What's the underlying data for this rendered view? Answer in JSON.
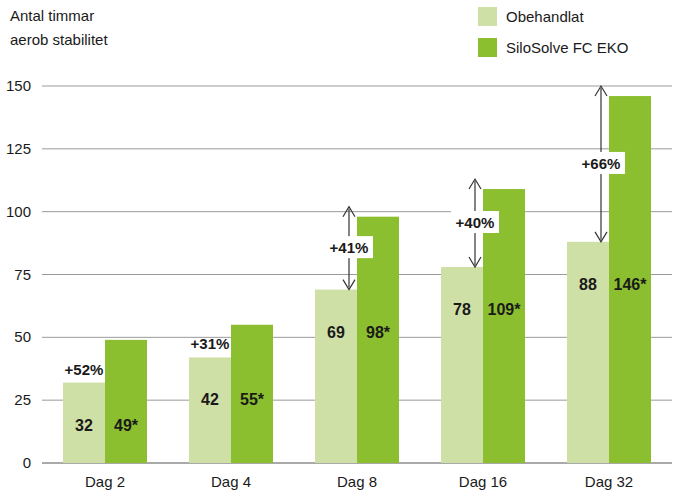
{
  "chart_data": {
    "type": "bar",
    "y_label": [
      "Antal timmar",
      "aerob stabilitet"
    ],
    "categories": [
      "Dag 2",
      "Dag 4",
      "Dag 8",
      "Dag 16",
      "Dag 32"
    ],
    "series": [
      {
        "name": "Obehandlat",
        "color": "#cfe0a6",
        "values": [
          32,
          42,
          69,
          78,
          88
        ]
      },
      {
        "name": "SiloSolve FC EKO",
        "color": "#8cbf2f",
        "values": [
          49,
          55,
          98,
          109,
          146
        ],
        "value_labels": [
          "49*",
          "55*",
          "98*",
          "109*",
          "146*"
        ]
      }
    ],
    "annotations": [
      "+52%",
      "+31%",
      "+41%",
      "+40%",
      "+66%"
    ],
    "ylim": [
      0,
      150
    ],
    "yticks": [
      0,
      25,
      50,
      75,
      100,
      125,
      150
    ],
    "grid": true,
    "legend": "top-right",
    "data_labels": true
  }
}
